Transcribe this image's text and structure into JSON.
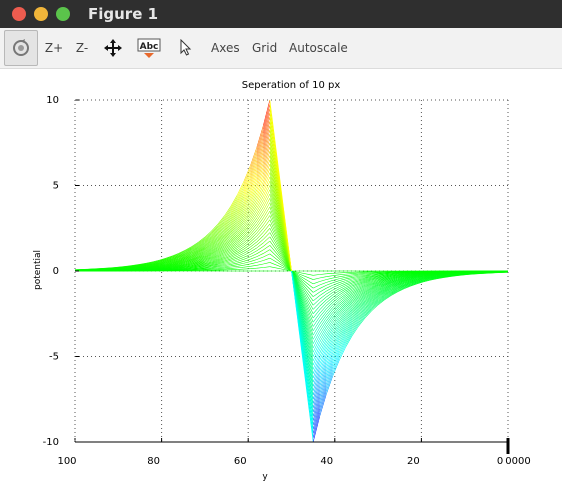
{
  "window": {
    "title": "Figure 1"
  },
  "toolbar": {
    "rotate_icon": "rotate-icon",
    "zoom_in": "Z+",
    "zoom_out": "Z-",
    "pan_icon": "pan-move-icon",
    "text_icon_label": "Abc",
    "select_icon": "select-arrow-icon",
    "axes": "Axes",
    "grid": "Grid",
    "autoscale": "Autoscale"
  },
  "chart_data": {
    "type": "line",
    "title": "Seperation of 10 px",
    "xlabel": "y",
    "ylabel": "potential",
    "xlim": [
      100,
      0
    ],
    "ylim": [
      -10,
      10
    ],
    "x_reversed": true,
    "x_ticks": [
      "100",
      "80",
      "60",
      "40",
      "20",
      "0"
    ],
    "x_corner_label": "0000",
    "y_ticks": [
      "10",
      "5",
      "0",
      "-5",
      "-10"
    ],
    "grid": true,
    "colormap": "rainbow",
    "series_count": 41,
    "description_data": {
      "positive_peak": {
        "x": 55,
        "y": 10
      },
      "negative_peak": {
        "x": 45,
        "y": -10
      },
      "zero_crossing_x": 50
    }
  }
}
